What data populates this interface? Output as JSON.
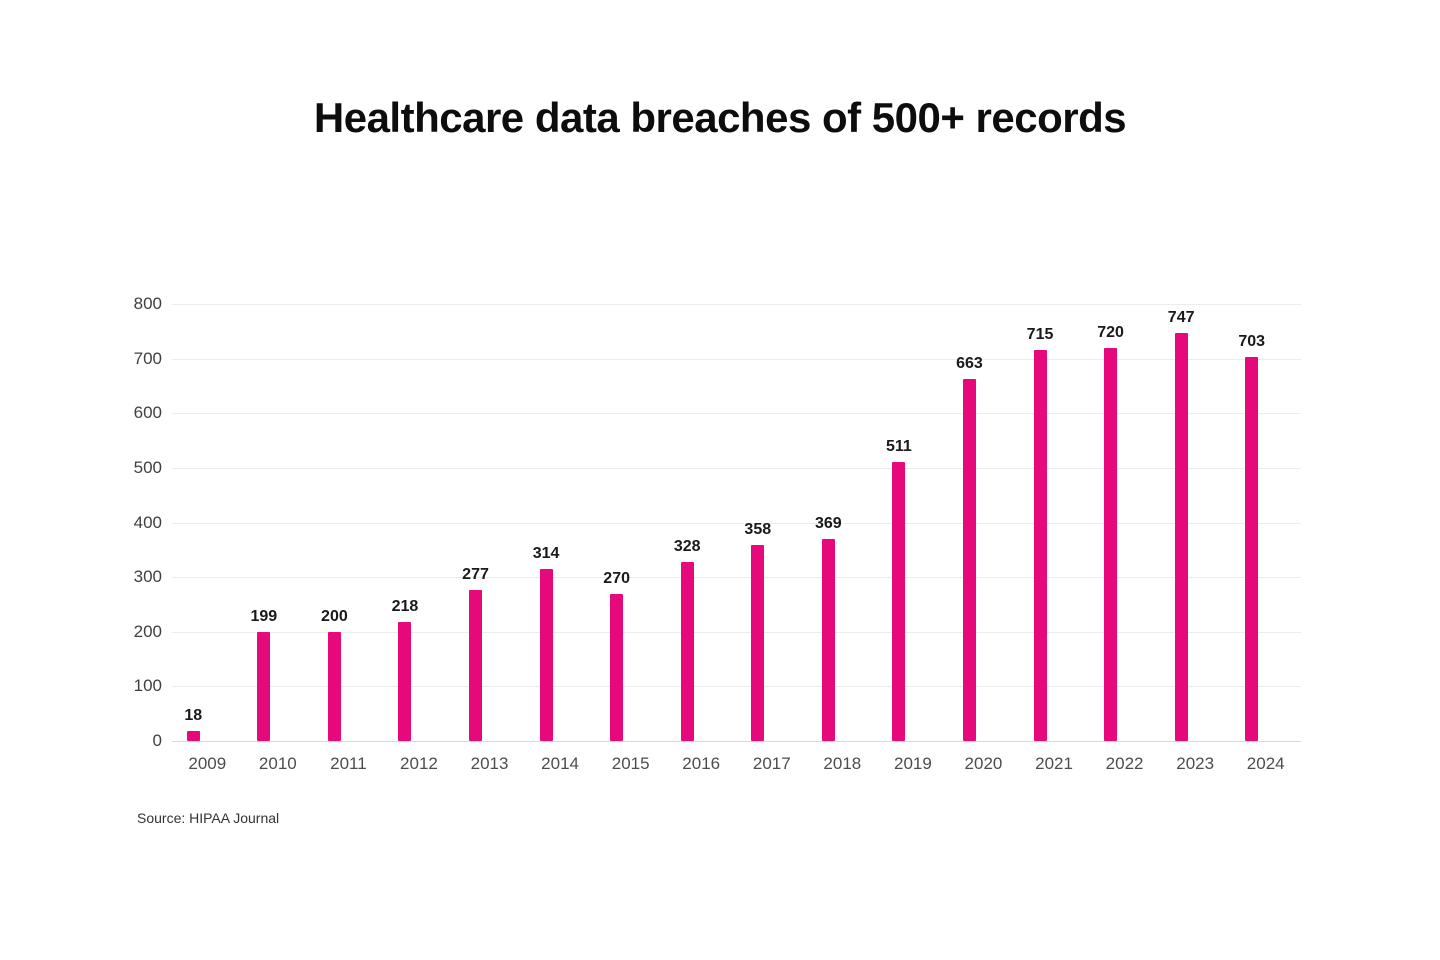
{
  "page": {
    "background": "#ffffff"
  },
  "chart_data": {
    "type": "bar",
    "title": "Healthcare data breaches of 500+ records",
    "source_label": "Source: HIPAA Journal",
    "categories": [
      "2009",
      "2010",
      "2011",
      "2012",
      "2013",
      "2014",
      "2015",
      "2016",
      "2017",
      "2018",
      "2019",
      "2020",
      "2021",
      "2022",
      "2023",
      "2024"
    ],
    "values": [
      18,
      199,
      200,
      218,
      277,
      314,
      270,
      328,
      358,
      369,
      511,
      663,
      715,
      720,
      747,
      703
    ],
    "xlabel": "",
    "ylabel": "",
    "ylim": [
      0,
      800
    ],
    "ytick_step": 100,
    "grid": "horizontal",
    "legend": "none",
    "show_value_labels": true,
    "colors": {
      "bar": "#e5097c",
      "gridline": "#ececec",
      "baseline": "#d8d8d8",
      "title_text": "#0d0d0d",
      "value_label_text": "#1a1a1a",
      "axis_text": "#4d4d4d"
    }
  }
}
